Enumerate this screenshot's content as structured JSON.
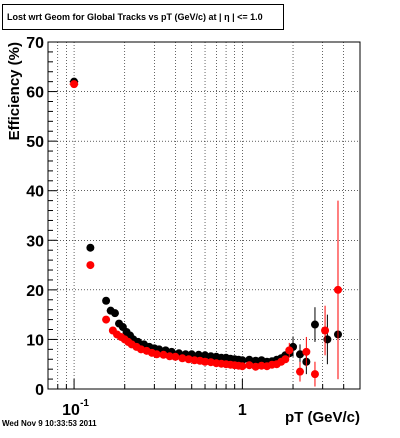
{
  "title": "Lost wrt Geom for Global Tracks vs pT (GeV/c) at |  η | <= 1.0",
  "footer": "Wed Nov  9 10:33:53 2011",
  "chart_data": {
    "type": "scatter",
    "title": "Lost wrt Geom for Global Tracks vs pT (GeV/c) at |  η | <= 1.0",
    "xlabel": "pT (GeV/c)",
    "ylabel": "Efficiency (%)",
    "xscale": "log",
    "xlim": [
      0.07,
      5.0
    ],
    "ylim": [
      0,
      70
    ],
    "grid": true,
    "y_ticks": [
      0,
      10,
      20,
      30,
      40,
      50,
      60,
      70
    ],
    "x_tick_labels": [
      {
        "value": 0.1,
        "base": "10",
        "exp": "-1"
      },
      {
        "value": 1,
        "base": "1",
        "exp": ""
      }
    ],
    "colors": {
      "series_black": "#000000",
      "series_red": "#ff0000"
    },
    "series": [
      {
        "color": "#000000",
        "points": [
          {
            "x": 0.1,
            "y": 62.0,
            "xerr": 0.006,
            "yerr": 0.5
          },
          {
            "x": 0.125,
            "y": 28.5,
            "xerr": 0.006,
            "yerr": 0.4
          },
          {
            "x": 0.155,
            "y": 17.8,
            "yerr": 0.3
          },
          {
            "x": 0.165,
            "y": 15.8,
            "yerr": 0.3
          },
          {
            "x": 0.175,
            "y": 15.3,
            "yerr": 0.3
          },
          {
            "x": 0.185,
            "y": 13.2,
            "yerr": 0.3
          },
          {
            "x": 0.195,
            "y": 12.5
          },
          {
            "x": 0.205,
            "y": 11.5
          },
          {
            "x": 0.215,
            "y": 10.8
          },
          {
            "x": 0.225,
            "y": 10.0
          },
          {
            "x": 0.24,
            "y": 9.5
          },
          {
            "x": 0.26,
            "y": 9.0
          },
          {
            "x": 0.28,
            "y": 8.5
          },
          {
            "x": 0.3,
            "y": 8.2
          },
          {
            "x": 0.32,
            "y": 8.0
          },
          {
            "x": 0.35,
            "y": 7.8
          },
          {
            "x": 0.38,
            "y": 7.5
          },
          {
            "x": 0.42,
            "y": 7.2
          },
          {
            "x": 0.46,
            "y": 7.0
          },
          {
            "x": 0.5,
            "y": 7.0
          },
          {
            "x": 0.55,
            "y": 6.9
          },
          {
            "x": 0.6,
            "y": 6.8
          },
          {
            "x": 0.65,
            "y": 6.6
          },
          {
            "x": 0.7,
            "y": 6.5
          },
          {
            "x": 0.75,
            "y": 6.3
          },
          {
            "x": 0.8,
            "y": 6.3
          },
          {
            "x": 0.85,
            "y": 6.1
          },
          {
            "x": 0.9,
            "y": 6.0
          },
          {
            "x": 0.95,
            "y": 5.9
          },
          {
            "x": 1.0,
            "y": 5.8
          },
          {
            "x": 1.1,
            "y": 5.9
          },
          {
            "x": 1.2,
            "y": 5.7
          },
          {
            "x": 1.3,
            "y": 5.8
          },
          {
            "x": 1.4,
            "y": 5.5
          },
          {
            "x": 1.5,
            "y": 5.6
          },
          {
            "x": 1.6,
            "y": 5.9
          },
          {
            "x": 1.7,
            "y": 6.2
          },
          {
            "x": 1.8,
            "y": 6.8
          },
          {
            "x": 1.9,
            "y": 7.2
          },
          {
            "x": 2.0,
            "y": 8.5,
            "yerr": 2.0
          },
          {
            "x": 2.2,
            "y": 7.0,
            "yerr": 2.0
          },
          {
            "x": 2.4,
            "y": 5.5,
            "yerr": 2.5
          },
          {
            "x": 2.7,
            "y": 13.0,
            "yerr": 3.5
          },
          {
            "x": 3.2,
            "y": 10.0,
            "yerr": 5.0
          },
          {
            "x": 3.7,
            "y": 11.0,
            "yerr": 9.0
          }
        ]
      },
      {
        "color": "#ff0000",
        "points": [
          {
            "x": 0.1,
            "y": 61.5,
            "xerr": 0.006,
            "yerr": 0.5
          },
          {
            "x": 0.125,
            "y": 25.0,
            "xerr": 0.006,
            "yerr": 0.4
          },
          {
            "x": 0.155,
            "y": 14.0,
            "yerr": 0.3
          },
          {
            "x": 0.17,
            "y": 11.8
          },
          {
            "x": 0.18,
            "y": 11.0
          },
          {
            "x": 0.19,
            "y": 10.5
          },
          {
            "x": 0.2,
            "y": 10.0
          },
          {
            "x": 0.21,
            "y": 9.5
          },
          {
            "x": 0.22,
            "y": 9.0
          },
          {
            "x": 0.235,
            "y": 8.5
          },
          {
            "x": 0.25,
            "y": 8.0
          },
          {
            "x": 0.27,
            "y": 7.7
          },
          {
            "x": 0.29,
            "y": 7.3
          },
          {
            "x": 0.31,
            "y": 7.0
          },
          {
            "x": 0.34,
            "y": 6.9
          },
          {
            "x": 0.37,
            "y": 6.6
          },
          {
            "x": 0.4,
            "y": 6.5
          },
          {
            "x": 0.44,
            "y": 6.2
          },
          {
            "x": 0.48,
            "y": 6.0
          },
          {
            "x": 0.52,
            "y": 5.8
          },
          {
            "x": 0.56,
            "y": 5.7
          },
          {
            "x": 0.6,
            "y": 5.5
          },
          {
            "x": 0.65,
            "y": 5.4
          },
          {
            "x": 0.7,
            "y": 5.2
          },
          {
            "x": 0.75,
            "y": 5.1
          },
          {
            "x": 0.8,
            "y": 5.0
          },
          {
            "x": 0.85,
            "y": 4.9
          },
          {
            "x": 0.9,
            "y": 4.8
          },
          {
            "x": 0.95,
            "y": 4.7
          },
          {
            "x": 1.0,
            "y": 4.6
          },
          {
            "x": 1.1,
            "y": 4.8
          },
          {
            "x": 1.2,
            "y": 4.5
          },
          {
            "x": 1.3,
            "y": 4.7
          },
          {
            "x": 1.4,
            "y": 4.6
          },
          {
            "x": 1.5,
            "y": 4.9
          },
          {
            "x": 1.6,
            "y": 5.0
          },
          {
            "x": 1.7,
            "y": 5.5
          },
          {
            "x": 1.8,
            "y": 6.0
          },
          {
            "x": 1.9,
            "y": 7.8,
            "yerr": 1.5
          },
          {
            "x": 2.2,
            "y": 3.5,
            "yerr": 2.0
          },
          {
            "x": 2.4,
            "y": 7.5,
            "yerr": 3.0
          },
          {
            "x": 2.7,
            "y": 3.0,
            "yerr": 2.5
          },
          {
            "x": 3.1,
            "y": 11.8,
            "yerr": 5.0
          },
          {
            "x": 3.7,
            "y": 20.0,
            "yerr": 18.0
          }
        ]
      }
    ]
  }
}
